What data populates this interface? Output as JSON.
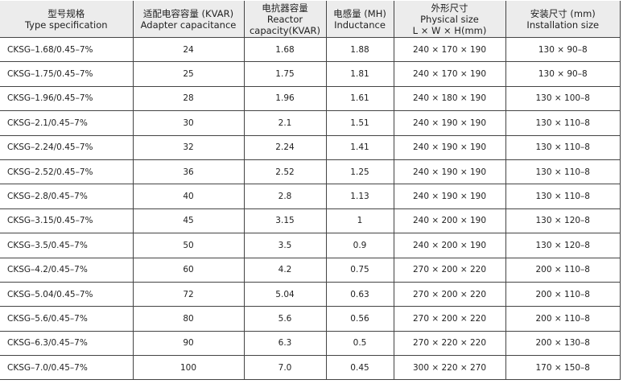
{
  "headers": [
    {
      "zh": "型号规格",
      "en": "Type specification"
    },
    {
      "zh": "适配电容容量 (KVAR)",
      "en": "Adapter capacitance"
    },
    {
      "zh": "电抗器容量",
      "en": "Reactor",
      "en2": "capacity(KVAR)"
    },
    {
      "zh": "电感量 (MH)",
      "en": "Inductance"
    },
    {
      "zh": "外形尺寸",
      "en": "Physical size",
      "en2": "L × W × H(mm)"
    },
    {
      "zh": "安装尺寸 (mm)",
      "en": "Installation size"
    }
  ],
  "rows": [
    [
      "CKSG–1.68/0.45–7%",
      "24",
      "1.68",
      "1.88",
      "240 × 170 × 190",
      "130 × 90–8"
    ],
    [
      "CKSG–1.75/0.45–7%",
      "25",
      "1.75",
      "1.81",
      "240 × 170 × 190",
      "130 × 90–8"
    ],
    [
      "CKSG–1.96/0.45–7%",
      "28",
      "1.96",
      "1.61",
      "240 × 180 × 190",
      "130 × 100–8"
    ],
    [
      "CKSG–2.1/0.45–7%",
      "30",
      "2.1",
      "1.51",
      "240 × 190 × 190",
      "130 × 110–8"
    ],
    [
      "CKSG–2.24/0.45–7%",
      "32",
      "2.24",
      "1.41",
      "240 × 190 × 190",
      "130 × 110–8"
    ],
    [
      "CKSG–2.52/0.45–7%",
      "36",
      "2.52",
      "1.25",
      "240 × 190 × 190",
      "130 × 110–8"
    ],
    [
      "CKSG–2.8/0.45–7%",
      "40",
      "2.8",
      "1.13",
      "240 × 190 × 190",
      "130 × 110–8"
    ],
    [
      "CKSG–3.15/0.45–7%",
      "45",
      "3.15",
      "1",
      "240 × 200 × 190",
      "130 × 120–8"
    ],
    [
      "CKSG–3.5/0.45–7%",
      "50",
      "3.5",
      "0.9",
      "240 × 200 × 190",
      "130 × 120–8"
    ],
    [
      "CKSG–4.2/0.45–7%",
      "60",
      "4.2",
      "0.75",
      "270 × 200 × 220",
      "200 × 110–8"
    ],
    [
      "CKSG–5.04/0.45–7%",
      "72",
      "5.04",
      "0.63",
      "270 × 200 × 220",
      "200 × 110–8"
    ],
    [
      "CKSG–5.6/0.45–7%",
      "80",
      "5.6",
      "0.56",
      "270 × 200 × 220",
      "200 × 110–8"
    ],
    [
      "CKSG–6.3/0.45–7%",
      "90",
      "6.3",
      "0.5",
      "270 × 220 × 220",
      "200 × 130–8"
    ],
    [
      "CKSG–7.0/0.45–7%",
      "100",
      "7.0",
      "0.45",
      "300 × 220 × 270",
      "170 × 150–8"
    ]
  ]
}
